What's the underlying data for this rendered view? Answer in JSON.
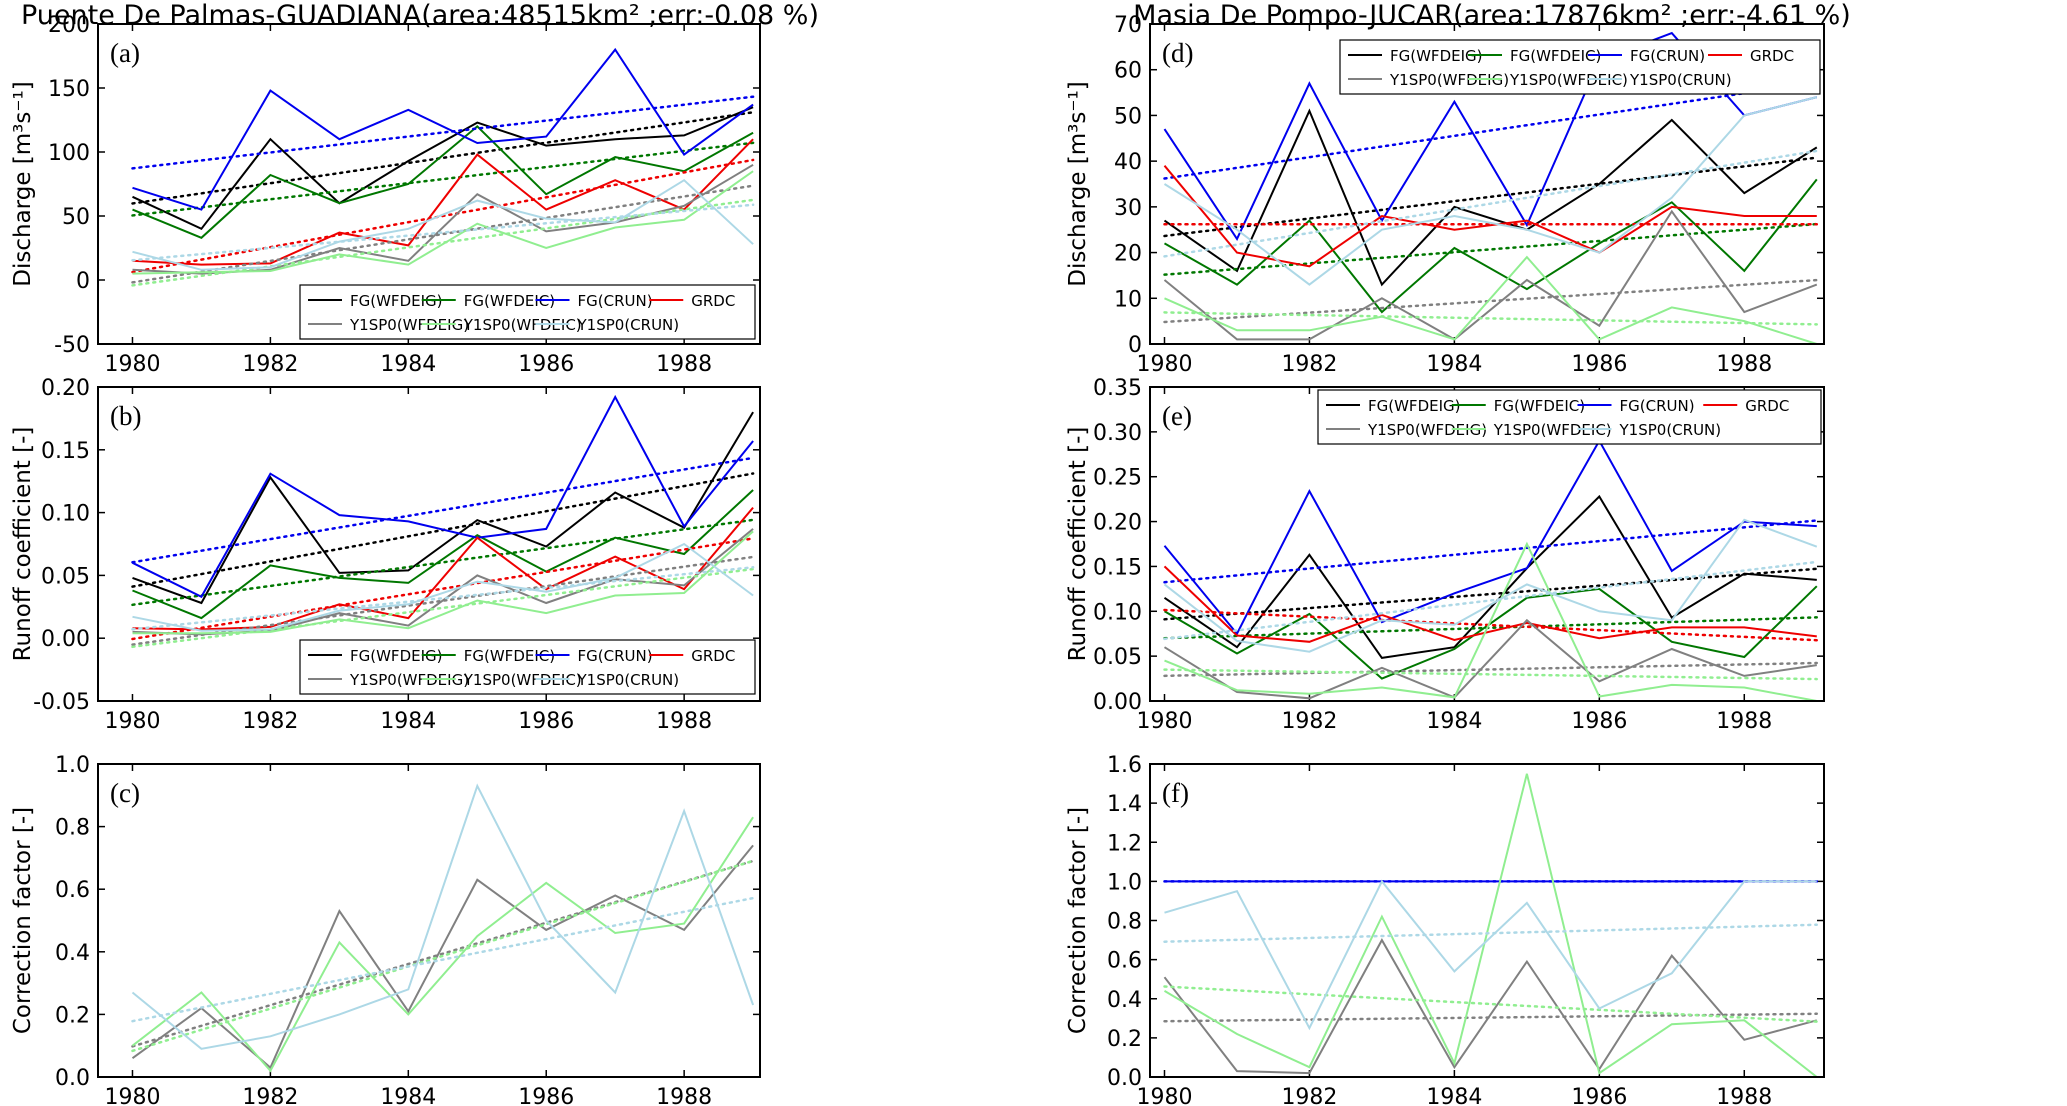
{
  "figure": {
    "left_title": "Puente De Palmas-GUADIANA(area:48515km² ;err:-0.08 %)",
    "right_title": "Masia De Pompo-JUCAR(area:17876km² ;err:-4.61 %)"
  },
  "colors": {
    "FG(WFDEIG)": "#000000",
    "FG(WFDEIC)": "#007700",
    "FG(CRUN)": "#0000ee",
    "GRDC": "#ee0000",
    "Y1SP0(WFDEIG)": "#808080",
    "Y1SP0(WFDEIC)": "#90ee90",
    "Y1SP0(CRUN)": "#add8e6"
  },
  "chart_data": [
    {
      "id": "a",
      "label": "(a)",
      "type": "line",
      "ylabel": "Discharge [m³s⁻¹]",
      "ylim": [
        -50,
        200
      ],
      "yticks": [
        -50,
        0,
        50,
        100,
        150,
        200
      ],
      "xlim": [
        1979.5,
        1989.1
      ],
      "xticks": [
        1980,
        1982,
        1984,
        1986,
        1988
      ],
      "legend": "bottom-right",
      "x": [
        1980,
        1981,
        1982,
        1983,
        1984,
        1985,
        1986,
        1987,
        1988,
        1989
      ],
      "series": [
        {
          "name": "FG(WFDEIG)",
          "values": [
            65,
            40,
            110,
            60,
            93,
            123,
            105,
            110,
            113,
            135
          ]
        },
        {
          "name": "FG(WFDEIC)",
          "values": [
            55,
            33,
            82,
            60,
            75,
            120,
            67,
            96,
            85,
            115
          ]
        },
        {
          "name": "FG(CRUN)",
          "values": [
            72,
            55,
            148,
            110,
            133,
            107,
            112,
            180,
            98,
            137
          ]
        },
        {
          "name": "GRDC",
          "values": [
            15,
            12,
            13,
            37,
            27,
            98,
            55,
            78,
            55,
            110
          ]
        },
        {
          "name": "Y1SP0(WFDEIG)",
          "values": [
            8,
            5,
            8,
            25,
            15,
            67,
            38,
            45,
            58,
            90
          ]
        },
        {
          "name": "Y1SP0(WFDEIC)",
          "values": [
            5,
            6,
            7,
            20,
            12,
            44,
            25,
            41,
            47,
            85
          ]
        },
        {
          "name": "Y1SP0(CRUN)",
          "values": [
            22,
            8,
            10,
            30,
            40,
            62,
            48,
            45,
            78,
            28
          ]
        }
      ]
    },
    {
      "id": "b",
      "label": "(b)",
      "type": "line",
      "ylabel": "Runoff coefficient [-]",
      "ylim": [
        -0.05,
        0.2
      ],
      "yticks": [
        -0.05,
        0.0,
        0.05,
        0.1,
        0.15,
        0.2
      ],
      "xlim": [
        1979.5,
        1989.1
      ],
      "xticks": [
        1980,
        1982,
        1984,
        1986,
        1988
      ],
      "legend": "bottom-right",
      "x": [
        1980,
        1981,
        1982,
        1983,
        1984,
        1985,
        1986,
        1987,
        1988,
        1989
      ],
      "series": [
        {
          "name": "FG(WFDEIG)",
          "values": [
            0.048,
            0.028,
            0.128,
            0.052,
            0.054,
            0.094,
            0.073,
            0.116,
            0.088,
            0.18
          ]
        },
        {
          "name": "FG(WFDEIC)",
          "values": [
            0.038,
            0.016,
            0.058,
            0.048,
            0.044,
            0.082,
            0.053,
            0.08,
            0.067,
            0.118
          ]
        },
        {
          "name": "FG(CRUN)",
          "values": [
            0.06,
            0.033,
            0.131,
            0.098,
            0.093,
            0.08,
            0.087,
            0.192,
            0.089,
            0.157
          ]
        },
        {
          "name": "GRDC",
          "values": [
            0.008,
            0.007,
            0.009,
            0.027,
            0.016,
            0.08,
            0.039,
            0.065,
            0.039,
            0.104
          ]
        },
        {
          "name": "Y1SP0(WFDEIG)",
          "values": [
            0.005,
            0.003,
            0.006,
            0.02,
            0.01,
            0.05,
            0.028,
            0.047,
            0.042,
            0.087
          ]
        },
        {
          "name": "Y1SP0(WFDEIC)",
          "values": [
            0.004,
            0.004,
            0.005,
            0.015,
            0.008,
            0.03,
            0.02,
            0.034,
            0.036,
            0.085
          ]
        },
        {
          "name": "Y1SP0(CRUN)",
          "values": [
            0.017,
            0.006,
            0.007,
            0.022,
            0.027,
            0.045,
            0.037,
            0.048,
            0.075,
            0.034
          ]
        }
      ]
    },
    {
      "id": "c",
      "label": "(c)",
      "type": "line",
      "ylabel": "Correction factor [-]",
      "ylim": [
        0.0,
        1.0
      ],
      "yticks": [
        0.0,
        0.2,
        0.4,
        0.6,
        0.8,
        1.0
      ],
      "xlim": [
        1979.5,
        1989.1
      ],
      "xticks": [
        1980,
        1982,
        1984,
        1986,
        1988
      ],
      "x": [
        1980,
        1981,
        1982,
        1983,
        1984,
        1985,
        1986,
        1987,
        1988,
        1989
      ],
      "series": [
        {
          "name": "Y1SP0(WFDEIG)",
          "values": [
            0.06,
            0.22,
            0.03,
            0.53,
            0.21,
            0.63,
            0.47,
            0.58,
            0.47,
            0.74
          ]
        },
        {
          "name": "Y1SP0(WFDEIC)",
          "values": [
            0.1,
            0.27,
            0.02,
            0.43,
            0.2,
            0.45,
            0.62,
            0.46,
            0.49,
            0.83
          ]
        },
        {
          "name": "Y1SP0(CRUN)",
          "values": [
            0.27,
            0.09,
            0.13,
            0.2,
            0.28,
            0.93,
            0.5,
            0.27,
            0.85,
            0.23
          ]
        }
      ]
    },
    {
      "id": "d",
      "label": "(d)",
      "type": "line",
      "ylabel": "Discharge [m³s⁻¹]",
      "ylim": [
        0,
        70
      ],
      "yticks": [
        0,
        10,
        20,
        30,
        40,
        50,
        60,
        70
      ],
      "xlim": [
        1979.8,
        1989.1
      ],
      "xticks": [
        1980,
        1982,
        1984,
        1986,
        1988
      ],
      "legend": "top",
      "x": [
        1980,
        1981,
        1982,
        1983,
        1984,
        1985,
        1986,
        1987,
        1988,
        1989
      ],
      "series": [
        {
          "name": "FG(WFDEIG)",
          "values": [
            27,
            16,
            51,
            13,
            30,
            25,
            35,
            49,
            33,
            43
          ]
        },
        {
          "name": "FG(WFDEIC)",
          "values": [
            22,
            13,
            27,
            7,
            21,
            12,
            22,
            31,
            16,
            36
          ]
        },
        {
          "name": "FG(CRUN)",
          "values": [
            47,
            23,
            57,
            27,
            53,
            26,
            62,
            68,
            50,
            54
          ]
        },
        {
          "name": "GRDC",
          "values": [
            39,
            20,
            17,
            28,
            25,
            27,
            20,
            30,
            28,
            28
          ]
        },
        {
          "name": "Y1SP0(WFDEIG)",
          "values": [
            14,
            1,
            1,
            10,
            1,
            14,
            4,
            29,
            7,
            13
          ]
        },
        {
          "name": "Y1SP0(WFDEIC)",
          "values": [
            10,
            3,
            3,
            6,
            1,
            19,
            1,
            8,
            5,
            0
          ]
        },
        {
          "name": "Y1SP0(CRUN)",
          "values": [
            35,
            25,
            13,
            25,
            28,
            25,
            20,
            32,
            50,
            54
          ]
        }
      ]
    },
    {
      "id": "e",
      "label": "(e)",
      "type": "line",
      "ylabel": "Runoff coefficient [-]",
      "ylim": [
        0.0,
        0.35
      ],
      "yticks": [
        0.0,
        0.05,
        0.1,
        0.15,
        0.2,
        0.25,
        0.3,
        0.35
      ],
      "xlim": [
        1979.8,
        1989.1
      ],
      "xticks": [
        1980,
        1982,
        1984,
        1986,
        1988
      ],
      "legend": "top",
      "x": [
        1980,
        1981,
        1982,
        1983,
        1984,
        1985,
        1986,
        1987,
        1988,
        1989
      ],
      "series": [
        {
          "name": "FG(WFDEIG)",
          "values": [
            0.115,
            0.06,
            0.163,
            0.048,
            0.06,
            0.148,
            0.228,
            0.093,
            0.142,
            0.135
          ]
        },
        {
          "name": "FG(WFDEIC)",
          "values": [
            0.1,
            0.053,
            0.097,
            0.025,
            0.058,
            0.115,
            0.125,
            0.066,
            0.049,
            0.128
          ]
        },
        {
          "name": "FG(CRUN)",
          "values": [
            0.173,
            0.075,
            0.234,
            0.088,
            0.12,
            0.148,
            0.29,
            0.145,
            0.2,
            0.195
          ]
        },
        {
          "name": "GRDC",
          "values": [
            0.15,
            0.073,
            0.066,
            0.096,
            0.068,
            0.087,
            0.07,
            0.082,
            0.082,
            0.072
          ]
        },
        {
          "name": "Y1SP0(WFDEIG)",
          "values": [
            0.06,
            0.01,
            0.003,
            0.037,
            0.004,
            0.09,
            0.022,
            0.058,
            0.028,
            0.04
          ]
        },
        {
          "name": "Y1SP0(WFDEIC)",
          "values": [
            0.045,
            0.012,
            0.008,
            0.015,
            0.004,
            0.175,
            0.005,
            0.018,
            0.015,
            0.0
          ]
        },
        {
          "name": "Y1SP0(CRUN)",
          "values": [
            0.13,
            0.067,
            0.055,
            0.09,
            0.085,
            0.13,
            0.1,
            0.09,
            0.202,
            0.172
          ]
        }
      ]
    },
    {
      "id": "f",
      "label": "(f)",
      "type": "line",
      "ylabel": "Correction factor [-]",
      "ylim": [
        0.0,
        1.6
      ],
      "yticks": [
        0.0,
        0.2,
        0.4,
        0.6,
        0.8,
        1.0,
        1.2,
        1.4,
        1.6
      ],
      "xlim": [
        1979.8,
        1989.1
      ],
      "xticks": [
        1980,
        1982,
        1984,
        1986,
        1988
      ],
      "x": [
        1980,
        1981,
        1982,
        1983,
        1984,
        1985,
        1986,
        1987,
        1988,
        1989
      ],
      "series": [
        {
          "name": "FG(CRUN)",
          "values": [
            1,
            1,
            1,
            1,
            1,
            1,
            1,
            1,
            1,
            1
          ]
        },
        {
          "name": "Y1SP0(WFDEIG)",
          "values": [
            0.51,
            0.03,
            0.02,
            0.7,
            0.05,
            0.59,
            0.04,
            0.62,
            0.19,
            0.29
          ]
        },
        {
          "name": "Y1SP0(WFDEIC)",
          "values": [
            0.44,
            0.22,
            0.05,
            0.82,
            0.07,
            1.55,
            0.02,
            0.27,
            0.29,
            0.0
          ]
        },
        {
          "name": "Y1SP0(CRUN)",
          "values": [
            0.84,
            0.95,
            0.25,
            1.0,
            0.54,
            0.89,
            0.35,
            0.53,
            1.0,
            1.0
          ]
        }
      ]
    }
  ]
}
